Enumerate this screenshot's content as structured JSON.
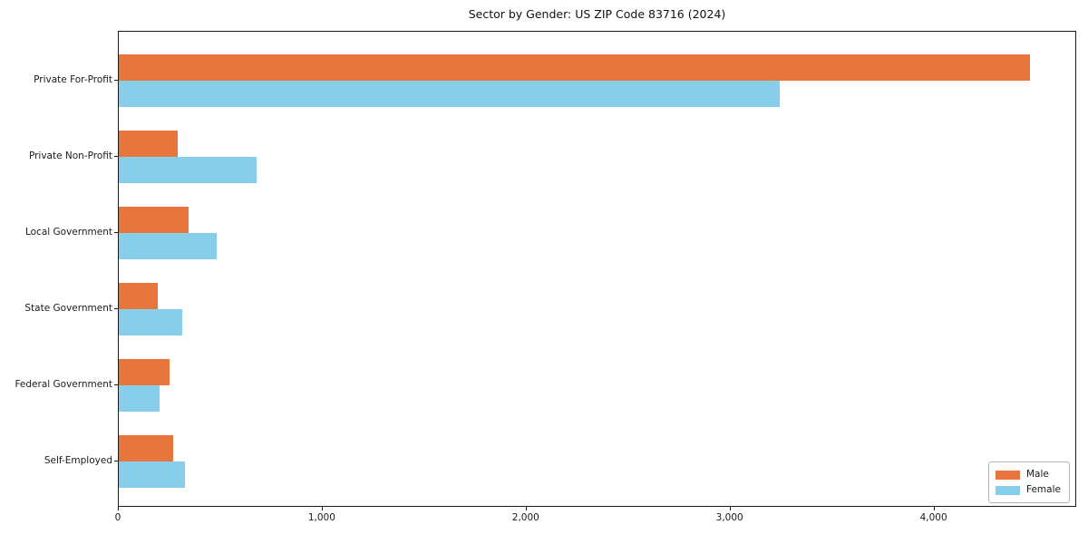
{
  "title": "Sector by Gender: US ZIP Code 83716 (2024)",
  "chart_data": {
    "type": "bar",
    "orientation": "horizontal",
    "title": "Sector by Gender: US ZIP Code 83716 (2024)",
    "categories": [
      "Private For-Profit",
      "Private Non-Profit",
      "Local Government",
      "State Government",
      "Federal Government",
      "Self-Employed"
    ],
    "series": [
      {
        "name": "Male",
        "color": "#e8763c",
        "values": [
          4470,
          290,
          342,
          193,
          249,
          267
        ]
      },
      {
        "name": "Female",
        "color": "#87ceeb",
        "values": [
          3240,
          675,
          478,
          312,
          200,
          323
        ]
      }
    ],
    "xlabel": "",
    "ylabel": "",
    "xlim": [
      0,
      4700
    ],
    "xticks": [
      0,
      1000,
      2000,
      3000,
      4000
    ],
    "xtick_labels": [
      "0",
      "1,000",
      "2,000",
      "3,000",
      "4,000"
    ],
    "grid": false,
    "legend_position": "lower right",
    "background_color": "#ffffff",
    "spine_color": "#1a1a1a"
  }
}
